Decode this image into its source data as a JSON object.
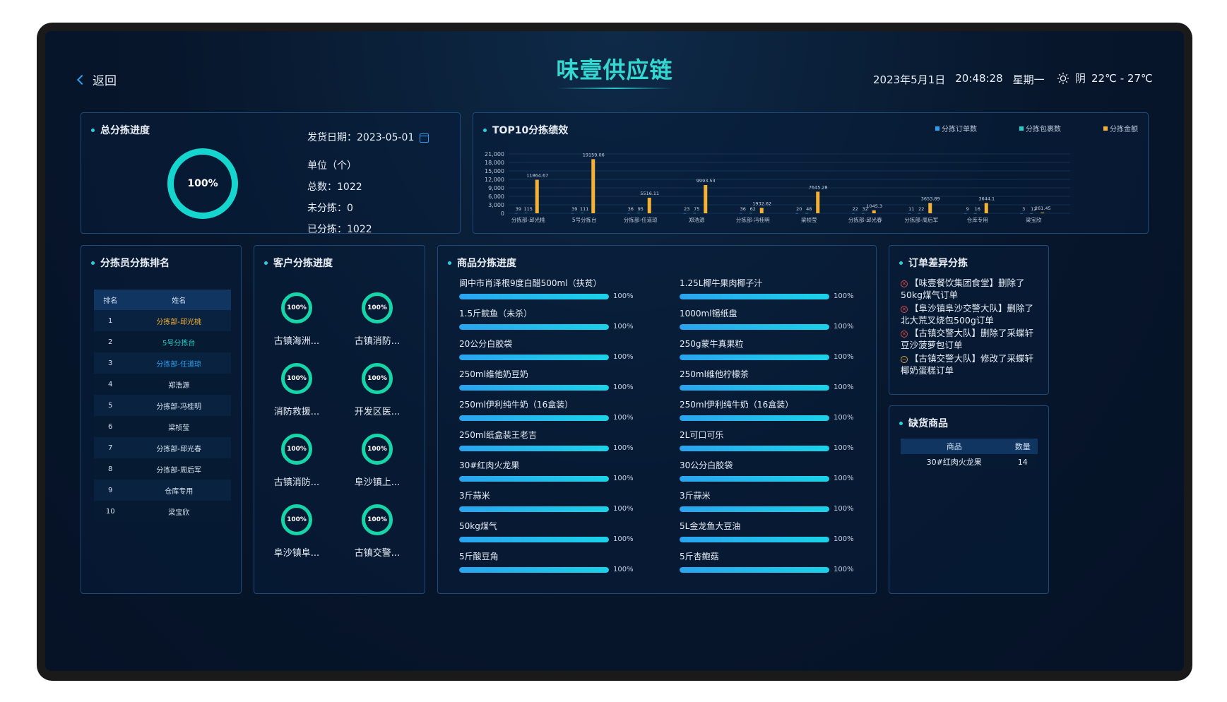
{
  "header": {
    "back_label": "返回",
    "title": "味壹供应链",
    "date": "2023年5月1日",
    "time": "20:48:28",
    "weekday": "星期一",
    "weather": "阴",
    "temp": "22℃ - 27℃"
  },
  "summary": {
    "title": "总分拣进度",
    "percent_label": "100%",
    "percent": 1.0,
    "ship_date_label": "发货日期：",
    "ship_date": "2023-05-01",
    "unit": "单位（个）",
    "total": "总数：1022",
    "unsorted": "未分拣：0",
    "sorted": "已分拣：1022"
  },
  "top10": {
    "title": "TOP10分拣绩效"
  },
  "chart_data": {
    "type": "bar",
    "title": "TOP10分拣绩效",
    "categories": [
      "分拣部-邱光桃",
      "5号分拣台",
      "分拣部-任道琼",
      "郑浩源",
      "分拣部-冯桂明",
      "梁桢莹",
      "分拣部-邱光春",
      "分拣部-周后军",
      "仓库专用",
      "梁宝欣"
    ],
    "series": [
      {
        "name": "分拣订单数",
        "color": "#2b9ef0",
        "values": [
          39,
          39,
          36,
          23,
          36,
          20,
          22,
          11,
          9,
          3
        ]
      },
      {
        "name": "分拣包裹数",
        "color": "#1ed0c8",
        "values": [
          115,
          111,
          95,
          75,
          62,
          48,
          32,
          22,
          16,
          12
        ]
      },
      {
        "name": "分拣金额",
        "color": "#f5b133",
        "values": [
          11864.67,
          19159.06,
          5516.11,
          9993.53,
          1932.62,
          7645.28,
          1045.3,
          3653.89,
          3644.1,
          261.45
        ]
      }
    ],
    "value_labels": [
      "11864.67",
      "19159.06",
      "5516.11",
      "9993.53",
      "1932.62",
      "7645.28",
      "1045.3",
      "3653.89",
      "3644.1",
      "261.45"
    ],
    "yticks": [
      "21,000",
      "18,000",
      "15,000",
      "12,000",
      "9,000",
      "6,000",
      "3,000",
      "0"
    ],
    "ylim": [
      0,
      21000
    ],
    "grid": true,
    "legend": "top-right"
  },
  "ranking": {
    "title": "分拣员分拣排名",
    "col_rank": "排名",
    "col_name": "姓名",
    "rows": [
      {
        "rank": "1",
        "name": "分拣部-邱光桃",
        "color": "#f5b133"
      },
      {
        "rank": "2",
        "name": "5号分拣台",
        "color": "#1ed0c8"
      },
      {
        "rank": "3",
        "name": "分拣部-任道琼",
        "color": "#2b9ef0"
      },
      {
        "rank": "4",
        "name": "郑浩源",
        "color": "#d5e2f0"
      },
      {
        "rank": "5",
        "name": "分拣部-冯桂明",
        "color": "#d5e2f0"
      },
      {
        "rank": "6",
        "name": "梁桢莹",
        "color": "#d5e2f0"
      },
      {
        "rank": "7",
        "name": "分拣部-邱光春",
        "color": "#d5e2f0"
      },
      {
        "rank": "8",
        "name": "分拣部-周后军",
        "color": "#d5e2f0"
      },
      {
        "rank": "9",
        "name": "仓库专用",
        "color": "#d5e2f0"
      },
      {
        "rank": "10",
        "name": "梁宝欣",
        "color": "#d5e2f0"
      }
    ]
  },
  "customers": {
    "title": "客户分拣进度",
    "items": [
      {
        "name": "古镇海洲...",
        "pct": "100%"
      },
      {
        "name": "古镇消防...",
        "pct": "100%"
      },
      {
        "name": "消防救援...",
        "pct": "100%"
      },
      {
        "name": "开发区医...",
        "pct": "100%"
      },
      {
        "name": "古镇消防...",
        "pct": "100%"
      },
      {
        "name": "阜沙镇上...",
        "pct": "100%"
      },
      {
        "name": "阜沙镇阜...",
        "pct": "100%"
      },
      {
        "name": "古镇交警...",
        "pct": "100%"
      }
    ]
  },
  "products": {
    "title": "商品分拣进度",
    "items": [
      {
        "name": "阆中市肖泽根9度白醋500ml（扶贫）",
        "pct": "100%",
        "fraction": 1.0
      },
      {
        "name": "1.25L椰牛果肉椰子汁",
        "pct": "100%",
        "fraction": 1.0
      },
      {
        "name": "1.5斤鲩鱼（未杀）",
        "pct": "100%",
        "fraction": 1.0
      },
      {
        "name": "1000ml锡纸盘",
        "pct": "100%",
        "fraction": 1.0
      },
      {
        "name": "20公分白胶袋",
        "pct": "100%",
        "fraction": 1.0
      },
      {
        "name": "250g蒙牛真果粒",
        "pct": "100%",
        "fraction": 1.0
      },
      {
        "name": "250ml维他奶豆奶",
        "pct": "100%",
        "fraction": 1.0
      },
      {
        "name": "250ml维他柠檬茶",
        "pct": "100%",
        "fraction": 1.0
      },
      {
        "name": "250ml伊利纯牛奶（16盒装）",
        "pct": "100%",
        "fraction": 1.0
      },
      {
        "name": "250ml伊利纯牛奶（16盒装）",
        "pct": "100%",
        "fraction": 1.0
      },
      {
        "name": "250ml纸盒装王老吉",
        "pct": "100%",
        "fraction": 1.0
      },
      {
        "name": "2L可口可乐",
        "pct": "100%",
        "fraction": 1.0
      },
      {
        "name": "30#红肉火龙果",
        "pct": "100%",
        "fraction": 1.0
      },
      {
        "name": "30公分白胶袋",
        "pct": "100%",
        "fraction": 1.0
      },
      {
        "name": "3斤蒜米",
        "pct": "100%",
        "fraction": 1.0
      },
      {
        "name": "3斤蒜米",
        "pct": "100%",
        "fraction": 1.0
      },
      {
        "name": "50kg煤气",
        "pct": "100%",
        "fraction": 1.0
      },
      {
        "name": "5L金龙鱼大豆油",
        "pct": "100%",
        "fraction": 1.0
      },
      {
        "name": "5斤酸豆角",
        "pct": "100%",
        "fraction": 1.0
      },
      {
        "name": "5斤杏鲍菇",
        "pct": "100%",
        "fraction": 1.0
      }
    ]
  },
  "diffs": {
    "title": "订单差异分拣",
    "items": [
      {
        "text": "【味壹餐饮集团食堂】删除了50kg煤气订单",
        "type": "delete"
      },
      {
        "text": "【阜沙镇阜沙交警大队】删除了北大荒叉烧包500g订单",
        "type": "delete"
      },
      {
        "text": "【古镇交警大队】删除了采蝶轩豆沙菠萝包订单",
        "type": "delete"
      },
      {
        "text": "【古镇交警大队】修改了采蝶轩椰奶蛋糕订单",
        "type": "modify"
      }
    ]
  },
  "shortage": {
    "title": "缺货商品",
    "col_item": "商品",
    "col_qty": "数量",
    "rows": [
      {
        "item": "30#红肉火龙果",
        "qty": "14"
      }
    ]
  }
}
